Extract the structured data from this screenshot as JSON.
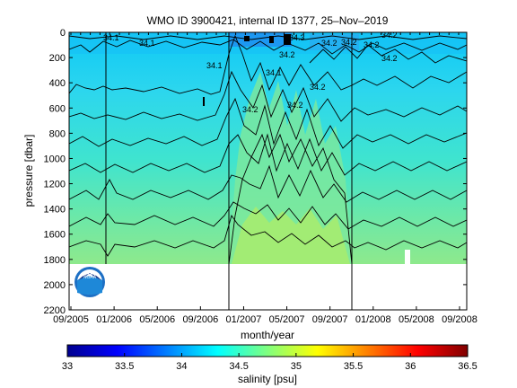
{
  "chart_data": {
    "type": "heatmap",
    "title": "WMO ID 3900421, internal ID 1377, 25–Nov–2019",
    "xlabel": "month/year",
    "ylabel": "pressure [dbar]",
    "x_tick_labels": [
      "09/2005",
      "01/2006",
      "05/2006",
      "09/2006",
      "01/2007",
      "05/2007",
      "09/2007",
      "01/2008",
      "05/2008",
      "09/2008"
    ],
    "y_tick_values": [
      0,
      200,
      400,
      600,
      800,
      1000,
      1200,
      1400,
      1600,
      1800,
      2000,
      2200
    ],
    "ylim": [
      0,
      2200
    ],
    "y_reversed": true,
    "data_depth_max": 1830,
    "colorbar": {
      "label": "salinity [psu]",
      "tick_values": [
        33,
        33.5,
        34,
        34.5,
        35,
        35.5,
        36,
        36.5
      ],
      "range": [
        33,
        36.5
      ],
      "colormap": "jet"
    },
    "contour_labels": [
      "34.1",
      "34.1",
      "34.1",
      "34.1",
      "34.2",
      "34.2",
      "34.2",
      "34.2",
      "34.2",
      "34.2",
      "34.2",
      "34.2",
      "34.3",
      "34.2"
    ],
    "colors": {
      "shallow": "#26d9f2",
      "mid": "#3ee6c8",
      "deep": "#8fe98a",
      "deep_column": "#a6ee70"
    }
  },
  "logo": {
    "text": "NOAA"
  }
}
